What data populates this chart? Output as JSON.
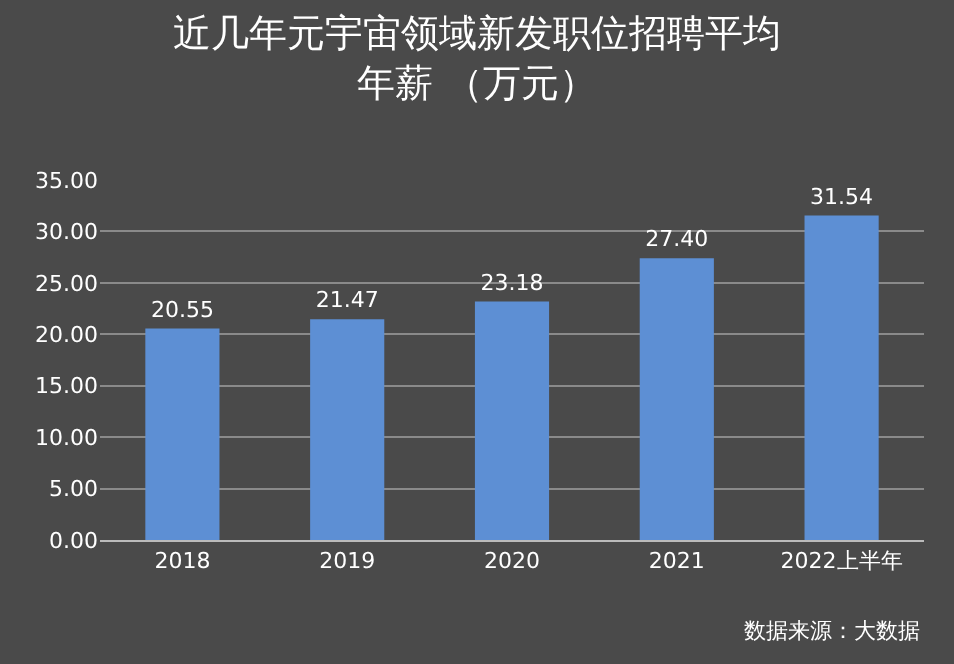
{
  "chart_data": {
    "type": "bar",
    "title": "近几年元宇宙领域新发职位招聘平均年薪 （万元）",
    "categories": [
      "2018",
      "2019",
      "2020",
      "2021",
      "2022上半年"
    ],
    "values": [
      20.55,
      21.47,
      23.18,
      27.4,
      31.54
    ],
    "value_labels": [
      "20.55",
      "21.47",
      "23.18",
      "27.40",
      "31.54"
    ],
    "color": "#5d8fd4",
    "ylim": [
      0,
      35
    ],
    "yticks": [
      {
        "value": 0,
        "label": "0.00"
      },
      {
        "value": 5,
        "label": "5.00"
      },
      {
        "value": 10,
        "label": "10.00"
      },
      {
        "value": 15,
        "label": "15.00"
      },
      {
        "value": 20,
        "label": "20.00"
      },
      {
        "value": 25,
        "label": "25.00"
      },
      {
        "value": 30,
        "label": "30.00"
      },
      {
        "value": 35,
        "label": "35.00"
      }
    ],
    "grid": "y",
    "annotations": [
      "数据来源：大数据"
    ]
  }
}
